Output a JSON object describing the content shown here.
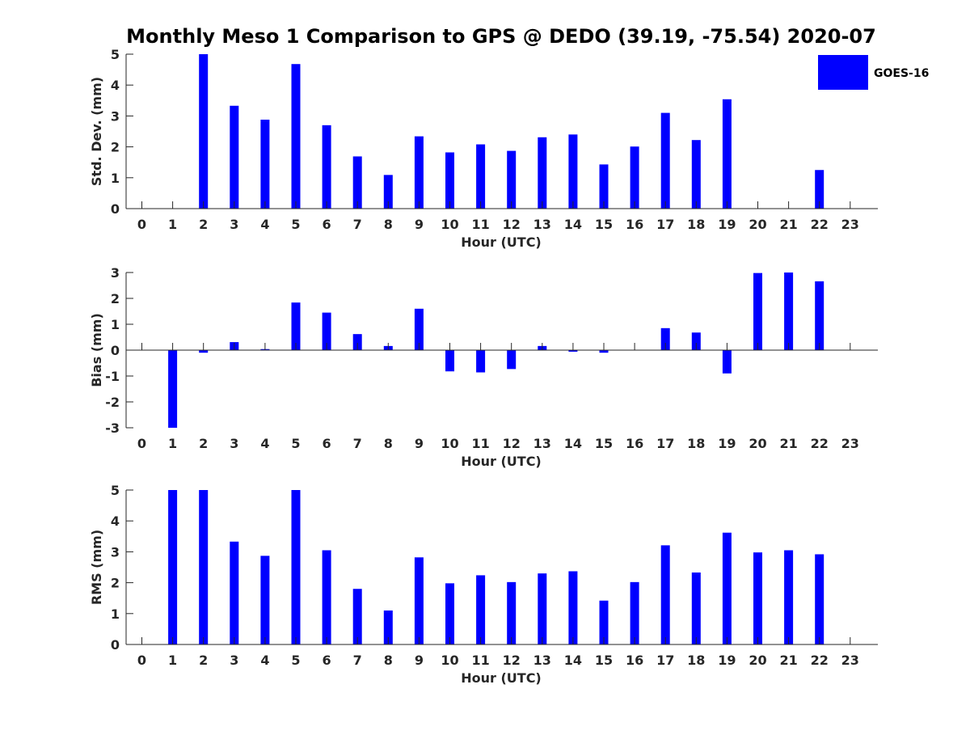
{
  "title": "Monthly Meso 1 Comparison to GPS @ DEDO (39.19, -75.54) 2020-07",
  "legend": {
    "label": "GOES-16",
    "color": "#0000ff"
  },
  "chart_data": [
    {
      "type": "bar",
      "xlabel": "Hour (UTC)",
      "ylabel": "Std. Dev. (mm)",
      "ylim": [
        0,
        5
      ],
      "yticks": [
        0,
        1,
        2,
        3,
        4,
        5
      ],
      "categories": [
        "0",
        "1",
        "2",
        "3",
        "4",
        "5",
        "6",
        "7",
        "8",
        "9",
        "10",
        "11",
        "12",
        "13",
        "14",
        "15",
        "16",
        "17",
        "18",
        "19",
        "20",
        "21",
        "22",
        "23"
      ],
      "series": [
        {
          "name": "GOES-16",
          "values": [
            null,
            null,
            5.0,
            3.33,
            2.88,
            4.68,
            2.7,
            1.69,
            1.09,
            2.34,
            1.82,
            2.08,
            1.87,
            2.31,
            2.4,
            1.43,
            2.01,
            3.1,
            2.22,
            3.54,
            null,
            null,
            1.25,
            null
          ]
        }
      ]
    },
    {
      "type": "bar",
      "xlabel": "Hour (UTC)",
      "ylabel": "Bias (mm)",
      "ylim": [
        -3,
        3
      ],
      "yticks": [
        -3,
        -2,
        -1,
        0,
        1,
        2,
        3
      ],
      "categories": [
        "0",
        "1",
        "2",
        "3",
        "4",
        "5",
        "6",
        "7",
        "8",
        "9",
        "10",
        "11",
        "12",
        "13",
        "14",
        "15",
        "16",
        "17",
        "18",
        "19",
        "20",
        "21",
        "22",
        "23"
      ],
      "series": [
        {
          "name": "GOES-16",
          "values": [
            null,
            -3.0,
            -0.1,
            0.31,
            0.04,
            1.84,
            1.45,
            0.62,
            0.16,
            1.6,
            -0.82,
            -0.86,
            -0.73,
            0.16,
            -0.06,
            -0.1,
            0.0,
            0.85,
            0.68,
            -0.9,
            2.98,
            3.0,
            2.66,
            null
          ]
        }
      ]
    },
    {
      "type": "bar",
      "xlabel": "Hour (UTC)",
      "ylabel": "RMS (mm)",
      "ylim": [
        0,
        5
      ],
      "yticks": [
        0,
        1,
        2,
        3,
        4,
        5
      ],
      "categories": [
        "0",
        "1",
        "2",
        "3",
        "4",
        "5",
        "6",
        "7",
        "8",
        "9",
        "10",
        "11",
        "12",
        "13",
        "14",
        "15",
        "16",
        "17",
        "18",
        "19",
        "20",
        "21",
        "22",
        "23"
      ],
      "series": [
        {
          "name": "GOES-16",
          "values": [
            null,
            5.0,
            5.0,
            3.33,
            2.87,
            5.0,
            3.05,
            1.8,
            1.1,
            2.82,
            1.98,
            2.24,
            2.02,
            2.3,
            2.37,
            1.42,
            2.02,
            3.21,
            2.33,
            3.62,
            2.98,
            3.05,
            2.92,
            null
          ]
        }
      ]
    }
  ]
}
